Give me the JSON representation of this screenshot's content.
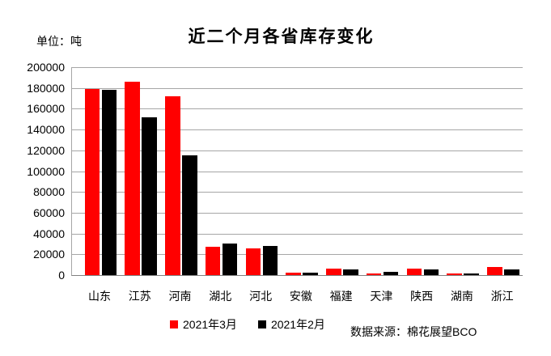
{
  "unit_label": "单位：吨",
  "title": "近二个月各省库存变化",
  "source": "数据来源：棉花展望BCO",
  "colors": {
    "series_march": "#ff0000",
    "series_feb": "#000000",
    "gridline": "#a6a6a6",
    "axis": "#7f7f7f",
    "text": "#000000",
    "background": "#ffffff"
  },
  "chart_data": {
    "type": "bar",
    "title": "近二个月各省库存变化",
    "unit": "吨",
    "xlabel": "",
    "ylabel": "",
    "categories": [
      "山东",
      "江苏",
      "河南",
      "湖北",
      "河北",
      "安徽",
      "福建",
      "天津",
      "陕西",
      "湖南",
      "浙江"
    ],
    "series": [
      {
        "name": "2021年3月",
        "color": "#ff0000",
        "values": [
          179000,
          186000,
          172000,
          27000,
          26000,
          2700,
          6000,
          1800,
          6000,
          1600,
          8000
        ]
      },
      {
        "name": "2021年2月",
        "color": "#000000",
        "values": [
          178000,
          152000,
          115000,
          30500,
          28000,
          2300,
          5500,
          3000,
          5200,
          1100,
          5500
        ]
      }
    ],
    "ylim": [
      0,
      200000
    ],
    "ytick_interval": 20000,
    "yticks": [
      "200000",
      "180000",
      "160000",
      "140000",
      "120000",
      "100000",
      "80000",
      "60000",
      "40000",
      "20000",
      "0"
    ],
    "grid": true,
    "legend_position": "bottom",
    "source": "数据来源：棉花展望BCO"
  }
}
